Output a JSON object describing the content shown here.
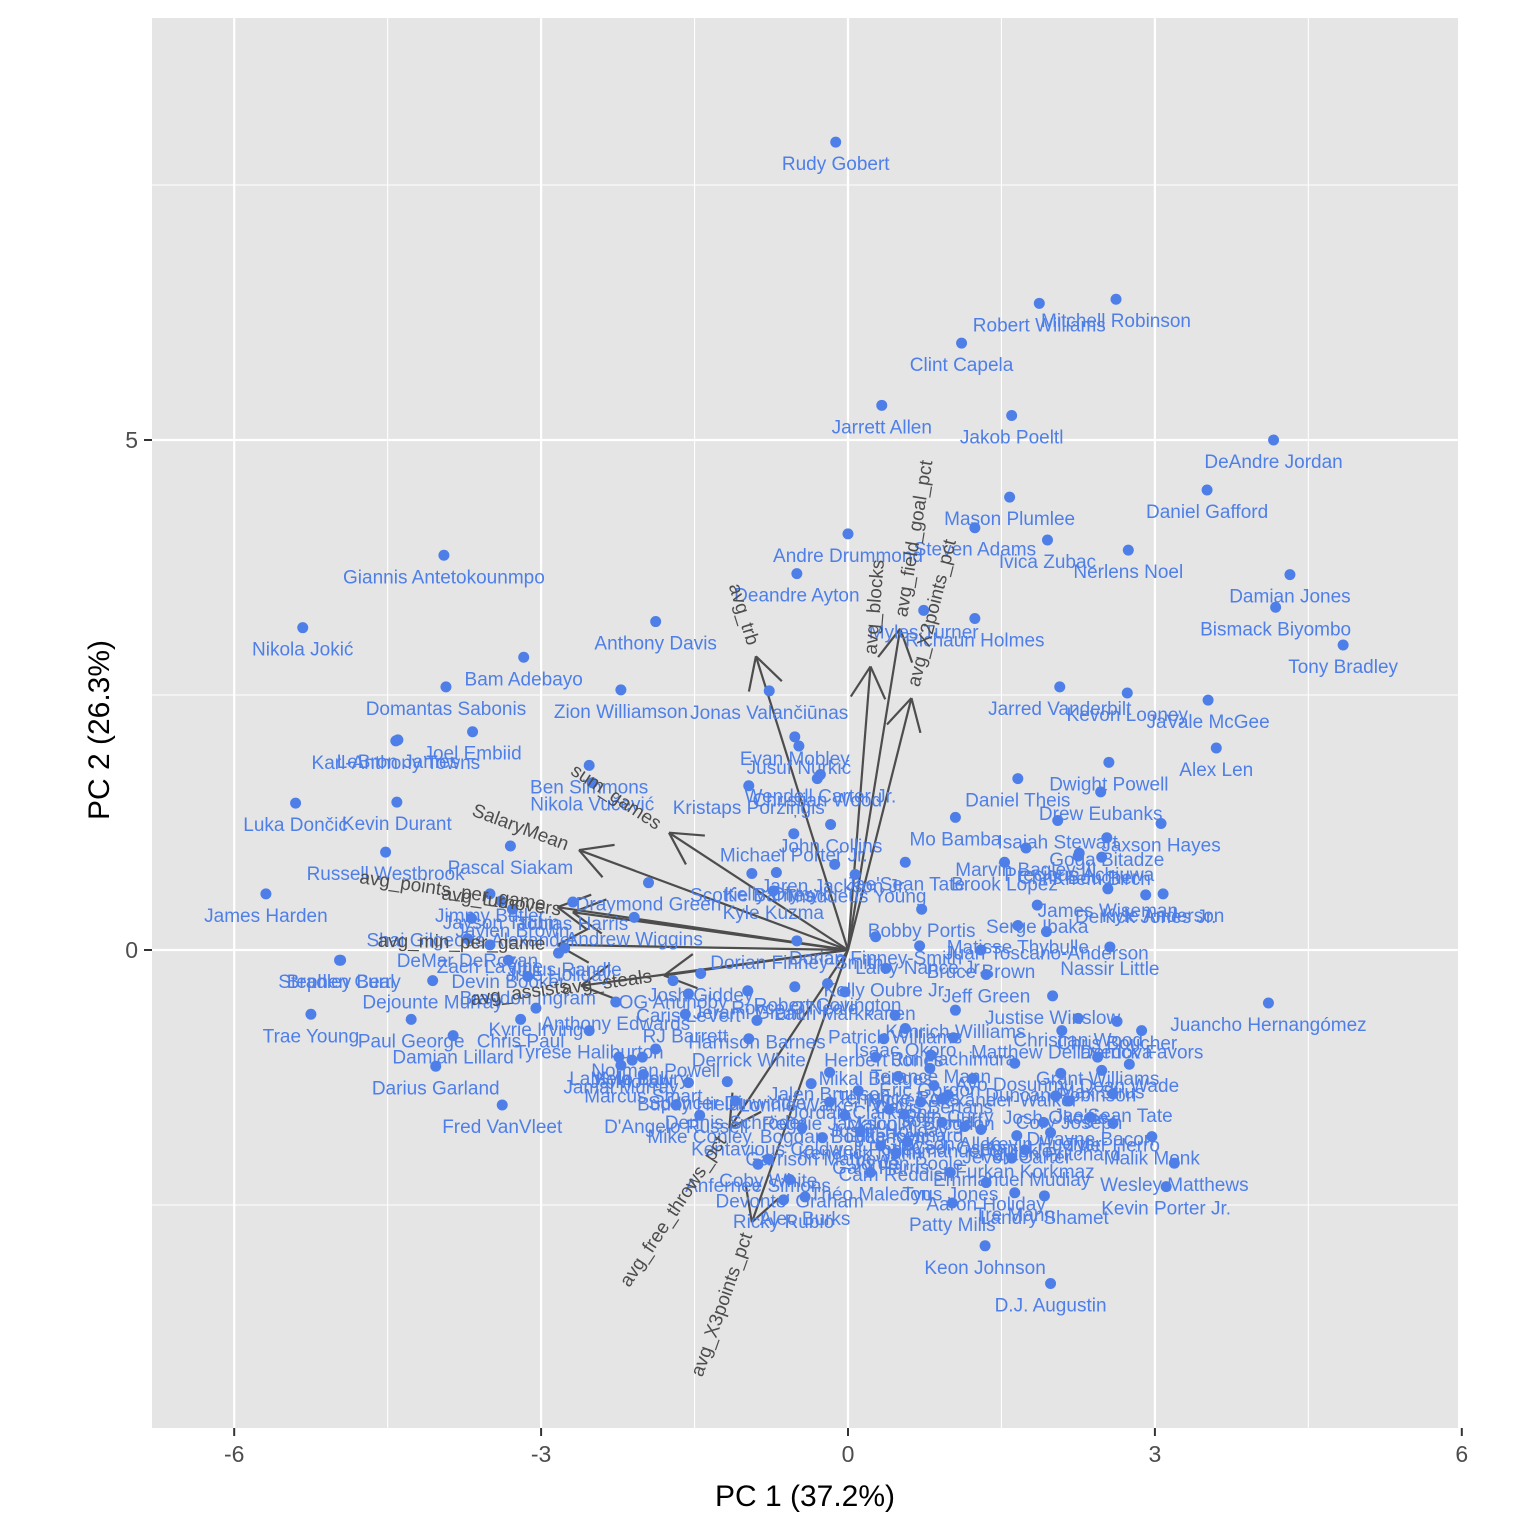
{
  "chart_data": {
    "type": "scatter",
    "subtype": "pca-biplot",
    "title": "",
    "xlabel": "PC 1 (37.2%)",
    "ylabel": "PC 2 (26.3%)",
    "xlim": [
      -6.8,
      6.0
    ],
    "ylim": [
      -9.2,
      9.2
    ],
    "x_ticks": [
      -6,
      -3,
      0,
      3,
      6
    ],
    "x_tick_labels": [
      "-6",
      "-3",
      "0",
      "3",
      "6"
    ],
    "y_ticks": [
      0,
      5
    ],
    "y_tick_labels": [
      "0",
      "5"
    ],
    "grid": true,
    "legend": "none",
    "colors": {
      "points": "#4E7FE8",
      "labels": "#4E7FE8",
      "arrows": "#4D4D4D",
      "arrow_labels": "#4D4D4D",
      "panel": "#E5E5E5",
      "grid": "#FFFFFF"
    },
    "points": [
      {
        "label": "Rudy Gobert",
        "x": -0.12,
        "y": 7.92
      },
      {
        "label": "Mitchell Robinson",
        "x": 2.62,
        "y": 6.38
      },
      {
        "label": "Robert Williams",
        "x": 1.87,
        "y": 6.34
      },
      {
        "label": "Clint Capela",
        "x": 1.11,
        "y": 5.95
      },
      {
        "label": "Jarrett Allen",
        "x": 0.33,
        "y": 5.34
      },
      {
        "label": "Jakob Poeltl",
        "x": 1.6,
        "y": 5.24
      },
      {
        "label": "DeAndre Jordan",
        "x": 4.16,
        "y": 5.0
      },
      {
        "label": "Daniel Gafford",
        "x": 3.51,
        "y": 4.51
      },
      {
        "label": "Mason Plumlee",
        "x": 1.58,
        "y": 4.44
      },
      {
        "label": "Ivica Zubac",
        "x": 1.95,
        "y": 4.02
      },
      {
        "label": "Steven Adams",
        "x": 1.24,
        "y": 4.14
      },
      {
        "label": "Nerlens Noel",
        "x": 2.74,
        "y": 3.92
      },
      {
        "label": "Damian Jones",
        "x": 4.32,
        "y": 3.68
      },
      {
        "label": "Bismack Biyombo",
        "x": 4.18,
        "y": 3.36
      },
      {
        "label": "Tony Bradley",
        "x": 4.84,
        "y": 2.99
      },
      {
        "label": "Andre Drummond",
        "x": 0.0,
        "y": 4.08
      },
      {
        "label": "Deandre Ayton",
        "x": -0.5,
        "y": 3.69
      },
      {
        "label": "Myles Turner",
        "x": 0.74,
        "y": 3.33
      },
      {
        "label": "Richaun Holmes",
        "x": 1.24,
        "y": 3.25
      },
      {
        "label": "Giannis Antetokounmpo",
        "x": -3.95,
        "y": 3.87
      },
      {
        "label": "Nikola Jokić",
        "x": -5.33,
        "y": 3.16
      },
      {
        "label": "Anthony Davis",
        "x": -1.88,
        "y": 3.22
      },
      {
        "label": "Bam Adebayo",
        "x": -3.17,
        "y": 2.87
      },
      {
        "label": "Domantas Sabonis",
        "x": -3.93,
        "y": 2.58
      },
      {
        "label": "Zion Williamson",
        "x": -2.22,
        "y": 2.55
      },
      {
        "label": "Joel Embiid",
        "x": -3.67,
        "y": 2.14
      },
      {
        "label": "Karl-Anthony Towns",
        "x": -4.42,
        "y": 2.05
      },
      {
        "label": "LeBron James",
        "x": -4.4,
        "y": 2.06
      },
      {
        "label": "Luka Dončić",
        "x": -5.4,
        "y": 1.44
      },
      {
        "label": "Kevin Durant",
        "x": -4.41,
        "y": 1.45
      },
      {
        "label": "Russell Westbrook",
        "x": -4.52,
        "y": 0.96
      },
      {
        "label": "James Harden",
        "x": -5.69,
        "y": 0.55
      },
      {
        "label": "Pascal Siakam",
        "x": -3.3,
        "y": 1.02
      },
      {
        "label": "Jonas Valančiūnas",
        "x": -0.77,
        "y": 2.54
      },
      {
        "label": "Evan Mobley",
        "x": -0.52,
        "y": 2.09
      },
      {
        "label": "Christian Wood",
        "x": -0.3,
        "y": 1.68
      },
      {
        "label": "Jusuf Nurkić",
        "x": -0.48,
        "y": 2.0
      },
      {
        "label": "Wendell Carter Jr.",
        "x": -0.27,
        "y": 1.72
      },
      {
        "label": "John Collins",
        "x": -0.17,
        "y": 1.23
      },
      {
        "label": "Kristaps Porziņģis",
        "x": -0.97,
        "y": 1.61
      },
      {
        "label": "Ben Simmons",
        "x": -2.53,
        "y": 1.81
      },
      {
        "label": "Nikola Vučević",
        "x": -2.5,
        "y": 1.64
      },
      {
        "label": "Draymond Green",
        "x": -1.95,
        "y": 0.66
      },
      {
        "label": "Michael Porter Jr.",
        "x": -0.53,
        "y": 1.14
      },
      {
        "label": "Jaren Jackson Jr.",
        "x": -0.13,
        "y": 0.84
      },
      {
        "label": "Thaddeus Young",
        "x": 0.07,
        "y": 0.74
      },
      {
        "label": "Jarred Vanderbilt",
        "x": 2.07,
        "y": 2.58
      },
      {
        "label": "Kevon Looney",
        "x": 2.73,
        "y": 2.52
      },
      {
        "label": "JaVale McGee",
        "x": 3.52,
        "y": 2.45
      },
      {
        "label": "Alex Len",
        "x": 3.6,
        "y": 1.98
      },
      {
        "label": "Dwight Powell",
        "x": 2.55,
        "y": 1.84
      },
      {
        "label": "Daniel Theis",
        "x": 1.66,
        "y": 1.68
      },
      {
        "label": "Drew Eubanks",
        "x": 2.47,
        "y": 1.55
      },
      {
        "label": "Isaiah Stewart",
        "x": 2.05,
        "y": 1.27
      },
      {
        "label": "Mo Bamba",
        "x": 1.05,
        "y": 1.3
      },
      {
        "label": "Jaxson Hayes",
        "x": 3.06,
        "y": 1.24
      },
      {
        "label": "Goga Bitadze",
        "x": 2.53,
        "y": 1.1
      },
      {
        "label": "Precious Achiuwa",
        "x": 2.26,
        "y": 0.95
      },
      {
        "label": "Marvin Bagley III",
        "x": 1.74,
        "y": 1.0
      },
      {
        "label": "Chris Boucher",
        "x": 2.25,
        "y": 0.92
      },
      {
        "label": "Khem Birch",
        "x": 2.48,
        "y": 0.91
      },
      {
        "label": "Brook Lopez",
        "x": 1.53,
        "y": 0.86
      },
      {
        "label": "James Wiseman",
        "x": 2.54,
        "y": 0.6
      },
      {
        "label": "Serge Ibaka",
        "x": 1.85,
        "y": 0.44
      },
      {
        "label": "Juancho Hernangómez",
        "x": 4.11,
        "y": -0.52
      },
      {
        "label": "Kyle Anderson",
        "x": 3.08,
        "y": 0.55
      },
      {
        "label": "Derrick Jones Jr.",
        "x": 2.91,
        "y": 0.54
      },
      {
        "label": "Matisse Thybulle",
        "x": 1.66,
        "y": 0.24
      },
      {
        "label": "Juan Toscano-Anderson",
        "x": 1.94,
        "y": 0.18
      },
      {
        "label": "Bruce Brown",
        "x": 1.3,
        "y": 0.0
      },
      {
        "label": "Nassir Little",
        "x": 2.56,
        "y": 0.03
      },
      {
        "label": "Larry Nance Jr.",
        "x": 0.7,
        "y": 0.04
      },
      {
        "label": "Bobby Portis",
        "x": 0.72,
        "y": 0.4
      },
      {
        "label": "Dorian Finney-Smith",
        "x": 0.27,
        "y": 0.13
      },
      {
        "label": "Kelly Oubre Jr.",
        "x": 0.37,
        "y": -0.18
      },
      {
        "label": "Jeff Green",
        "x": 1.35,
        "y": -0.24
      },
      {
        "label": "Justise Winslow",
        "x": 2.0,
        "y": -0.45
      },
      {
        "label": "Kenrich Williams",
        "x": 1.05,
        "y": -0.59
      },
      {
        "label": "Christian Wood",
        "x": 2.25,
        "y": -0.67
      },
      {
        "label": "Chris Boucher",
        "x": 2.63,
        "y": -0.7
      },
      {
        "label": "Derrick Favors",
        "x": 2.87,
        "y": -0.79
      },
      {
        "label": "Matthew Dellavedova",
        "x": 2.09,
        "y": -0.79
      },
      {
        "label": "Dean Wade",
        "x": 2.75,
        "y": -1.12
      },
      {
        "label": "Grant Williams",
        "x": 2.44,
        "y": -1.05
      },
      {
        "label": "Josh Okogie",
        "x": 2.03,
        "y": -1.43
      },
      {
        "label": "Jae'Sean Tate",
        "x": 0.56,
        "y": 0.86
      },
      {
        "label": "Dorian Finney-Smith",
        "x": -0.5,
        "y": 0.09
      },
      {
        "label": "Tobias Harris",
        "x": -2.69,
        "y": 0.47
      },
      {
        "label": "Andrew Wiggins",
        "x": -2.09,
        "y": 0.32
      },
      {
        "label": "Scottie Barnes",
        "x": -0.94,
        "y": 0.75
      },
      {
        "label": "Kelly Olynyk",
        "x": -0.7,
        "y": 0.76
      },
      {
        "label": "Kyle Kuzma",
        "x": -0.73,
        "y": 0.58
      },
      {
        "label": "Jimmy Butler",
        "x": -3.5,
        "y": 0.55
      },
      {
        "label": "Jayson Tatum",
        "x": -3.39,
        "y": 0.48
      },
      {
        "label": "Jaylen Brown",
        "x": -3.28,
        "y": 0.4
      },
      {
        "label": "Shai Gilgeous-Alexander",
        "x": -3.68,
        "y": 0.31
      },
      {
        "label": "DeMar DeRozan",
        "x": -3.72,
        "y": 0.11
      },
      {
        "label": "Zach LaVine",
        "x": -3.5,
        "y": 0.05
      },
      {
        "label": "Bradley Beal",
        "x": -4.96,
        "y": -0.1
      },
      {
        "label": "Devin Booker",
        "x": -3.32,
        "y": -0.1
      },
      {
        "label": "Jrue Holiday",
        "x": -2.83,
        "y": -0.03
      },
      {
        "label": "Julius Randle",
        "x": -2.77,
        "y": 0.02
      },
      {
        "label": "Dejounte Murray",
        "x": -4.06,
        "y": -0.3
      },
      {
        "label": "Brandon Ingram",
        "x": -3.13,
        "y": -0.26
      },
      {
        "label": "Paul George",
        "x": -4.27,
        "y": -0.68
      },
      {
        "label": "Chris Paul",
        "x": -3.2,
        "y": -0.68
      },
      {
        "label": "Kyrie Irving",
        "x": -3.05,
        "y": -0.57
      },
      {
        "label": "Stephen Curry",
        "x": -4.97,
        "y": -0.1
      },
      {
        "label": "Trae Young",
        "x": -5.25,
        "y": -0.63
      },
      {
        "label": "Damian Lillard",
        "x": -3.86,
        "y": -0.84
      },
      {
        "label": "Darius Garland",
        "x": -4.03,
        "y": -1.14
      },
      {
        "label": "Fred VanVleet",
        "x": -3.38,
        "y": -1.52
      },
      {
        "label": "D'Angelo Russell",
        "x": -1.68,
        "y": -1.52
      },
      {
        "label": "Mike Conley",
        "x": -1.45,
        "y": -1.62
      },
      {
        "label": "Dennis Schröder",
        "x": -1.1,
        "y": -1.48
      },
      {
        "label": "LaMelo Ball",
        "x": -2.24,
        "y": -1.05
      },
      {
        "label": "Kyle Lowry",
        "x": -2.01,
        "y": -1.05
      },
      {
        "label": "Ja Morant",
        "x": -2.11,
        "y": -1.08
      },
      {
        "label": "Jamal Murray",
        "x": -2.22,
        "y": -1.13
      },
      {
        "label": "Marcus Smart",
        "x": -2.0,
        "y": -1.22
      },
      {
        "label": "Buddy Hield",
        "x": -1.56,
        "y": -1.3
      },
      {
        "label": "Tyrese Haliburton",
        "x": -2.53,
        "y": -0.79
      },
      {
        "label": "OG Anunoby",
        "x": -1.71,
        "y": -0.3
      },
      {
        "label": "Josh Giddey",
        "x": -1.44,
        "y": -0.23
      },
      {
        "label": "Caris LeVert",
        "x": -1.56,
        "y": -0.43
      },
      {
        "label": "Anthony Edwards",
        "x": -2.27,
        "y": -0.51
      },
      {
        "label": "RJ Barrett",
        "x": -1.59,
        "y": -0.63
      },
      {
        "label": "Jerami Grant",
        "x": -0.98,
        "y": -0.4
      },
      {
        "label": "Harrison Barnes",
        "x": -0.89,
        "y": -0.69
      },
      {
        "label": "Derrick White",
        "x": -0.97,
        "y": -0.87
      },
      {
        "label": "Norman Powell",
        "x": -1.88,
        "y": -0.97
      },
      {
        "label": "Lauri Markkanen",
        "x": -0.03,
        "y": -0.41
      },
      {
        "label": "Robert Covington",
        "x": -0.2,
        "y": -0.33
      },
      {
        "label": "Royce O'Neale",
        "x": -0.52,
        "y": -0.36
      },
      {
        "label": "Patrick Williams",
        "x": 0.46,
        "y": -0.64
      },
      {
        "label": "Herbert Jones",
        "x": 0.35,
        "y": -0.87
      },
      {
        "label": "Isaac Okoro",
        "x": 0.56,
        "y": -0.77
      },
      {
        "label": "Rui Hachimura",
        "x": 1.03,
        "y": -0.86
      },
      {
        "label": "Terance Mann",
        "x": 0.81,
        "y": -1.03
      },
      {
        "label": "Mikal Bridges",
        "x": 0.27,
        "y": -1.05
      },
      {
        "label": "Kentavious Caldwell-Pope",
        "x": -0.45,
        "y": -1.74
      },
      {
        "label": "Coby White",
        "x": -0.78,
        "y": -2.05
      },
      {
        "label": "Anfernee Simons",
        "x": -0.88,
        "y": -2.1
      },
      {
        "label": "Gary Harris",
        "x": 0.32,
        "y": -1.92
      },
      {
        "label": "Cam Reddish",
        "x": 0.47,
        "y": -1.99
      },
      {
        "label": "Théo Maledon",
        "x": 0.22,
        "y": -2.18
      },
      {
        "label": "Alec Burks",
        "x": -0.42,
        "y": -2.42
      },
      {
        "label": "Ricky Rubio",
        "x": -0.63,
        "y": -2.45
      },
      {
        "label": "Devonte' Graham",
        "x": -0.57,
        "y": -2.25
      },
      {
        "label": "Tyus Jones",
        "x": 1.0,
        "y": -2.18
      },
      {
        "label": "Furkan Korkmaz",
        "x": 1.73,
        "y": -1.96
      },
      {
        "label": "Emmanuel Mudiay",
        "x": 1.6,
        "y": -2.04
      },
      {
        "label": "Kevin Huerter",
        "x": 1.91,
        "y": -1.69
      },
      {
        "label": "Payton Pritchard",
        "x": 1.98,
        "y": -1.79
      },
      {
        "label": "Landry Shamet",
        "x": 1.92,
        "y": -2.41
      },
      {
        "label": "Tre Mann",
        "x": 1.63,
        "y": -2.38
      },
      {
        "label": "Aaron Holiday",
        "x": 1.35,
        "y": -2.28
      },
      {
        "label": "Kevin Porter Jr.",
        "x": 3.11,
        "y": -2.32
      },
      {
        "label": "Wesley Matthews",
        "x": 3.19,
        "y": -2.09
      },
      {
        "label": "Malik Monk",
        "x": 2.97,
        "y": -1.83
      },
      {
        "label": "Tyler Herro",
        "x": 2.59,
        "y": -1.7
      },
      {
        "label": "Patty Mills",
        "x": 1.02,
        "y": -2.48
      },
      {
        "label": "Keon Johnson",
        "x": 1.34,
        "y": -2.9
      },
      {
        "label": "D.J. Augustin",
        "x": 1.98,
        "y": -3.27
      },
      {
        "label": "Jevon Carter",
        "x": 1.65,
        "y": -1.82
      },
      {
        "label": "Cedi Osman",
        "x": 1.14,
        "y": -1.73
      },
      {
        "label": "Malcolm Brogdon",
        "x": 0.71,
        "y": -1.49
      },
      {
        "label": "Luke Kennard",
        "x": 0.55,
        "y": -1.61
      },
      {
        "label": "Jordan Clarkson",
        "x": 0.1,
        "y": -1.38
      },
      {
        "label": "Davis Bertans",
        "x": 0.84,
        "y": -1.33
      },
      {
        "label": "Seth Curry",
        "x": 0.98,
        "y": -1.42
      },
      {
        "label": "Nickeil Alexander-Walker",
        "x": 1.22,
        "y": -1.26
      },
      {
        "label": "Eric Gordon",
        "x": 0.8,
        "y": -1.16
      },
      {
        "label": "Terrence Ross",
        "x": 0.49,
        "y": -1.24
      },
      {
        "label": "Lonnie Walker IV",
        "x": -0.36,
        "y": -1.31
      },
      {
        "label": "Jalen Brunson",
        "x": -0.18,
        "y": -1.2
      },
      {
        "label": "Ayo Dosunmu",
        "x": 1.63,
        "y": -1.11
      },
      {
        "label": "Max Strus",
        "x": 2.48,
        "y": -1.18
      },
      {
        "label": "Duncan Robinson",
        "x": 2.08,
        "y": -1.21
      },
      {
        "label": "Jae'Sean Tate",
        "x": 2.59,
        "y": -1.41
      },
      {
        "label": "Cory Joseph",
        "x": 2.16,
        "y": -1.48
      },
      {
        "label": "Dwayne Bacon",
        "x": 2.37,
        "y": -1.64
      },
      {
        "label": "Josh Hart",
        "x": 0.92,
        "y": -1.46
      },
      {
        "label": "Reggie Jackson",
        "x": -0.18,
        "y": -1.49
      },
      {
        "label": "Bogdan Bogdanović",
        "x": -0.03,
        "y": -1.62
      },
      {
        "label": "Spencer Dinwiddie",
        "x": -1.18,
        "y": -1.29
      },
      {
        "label": "Garrison Mathews",
        "x": -0.25,
        "y": -1.84
      },
      {
        "label": "Justin Holiday",
        "x": 0.4,
        "y": -1.56
      },
      {
        "label": "Kendrick Nunn",
        "x": 0.12,
        "y": -1.78
      },
      {
        "label": "Jordan Poole",
        "x": 0.58,
        "y": -1.88
      },
      {
        "label": "Grayson Allen",
        "x": 0.92,
        "y": -1.69
      },
      {
        "label": "Immanuel Quickley",
        "x": 1.3,
        "y": -1.76
      }
    ],
    "arrows": [
      {
        "label": "avg_trb",
        "x_end": -0.9,
        "y_end": 2.88
      },
      {
        "label": "avg_blocks",
        "x_end": 0.22,
        "y_end": 2.78
      },
      {
        "label": "avg_field_goal_pct",
        "x_end": 0.51,
        "y_end": 3.15
      },
      {
        "label": "avg_X2points_pct",
        "x_end": 0.62,
        "y_end": 2.47
      },
      {
        "label": "sum_games",
        "x_end": -1.75,
        "y_end": 1.15
      },
      {
        "label": "SalaryMean",
        "x_end": -2.63,
        "y_end": 0.98
      },
      {
        "label": "avg_turnovers",
        "x_end": -2.69,
        "y_end": 0.37
      },
      {
        "label": "avg_points_per_game",
        "x_end": -2.84,
        "y_end": 0.42
      },
      {
        "label": "avg_min_per_game",
        "x_end": -2.84,
        "y_end": 0.05
      },
      {
        "label": "avg_assists",
        "x_end": -2.61,
        "y_end": -0.35
      },
      {
        "label": "avg_steals",
        "x_end": -1.8,
        "y_end": -0.25
      },
      {
        "label": "avg_free_throws_pct",
        "x_end": -1.16,
        "y_end": -1.75
      },
      {
        "label": "avg_X3points_pct",
        "x_end": -0.94,
        "y_end": -2.67
      }
    ]
  }
}
